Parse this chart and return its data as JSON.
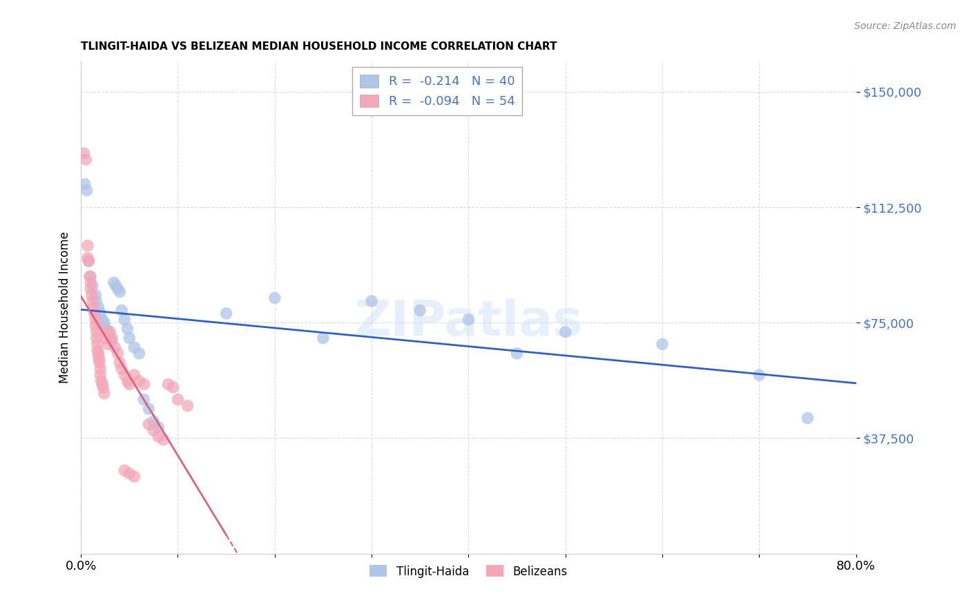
{
  "title": "TLINGIT-HAIDA VS BELIZEAN MEDIAN HOUSEHOLD INCOME CORRELATION CHART",
  "source": "Source: ZipAtlas.com",
  "ylabel": "Median Household Income",
  "ytick_labels": [
    "$37,500",
    "$75,000",
    "$112,500",
    "$150,000"
  ],
  "ytick_values": [
    37500,
    75000,
    112500,
    150000
  ],
  "ymin": 0,
  "ymax": 160000,
  "xmin": 0.0,
  "xmax": 0.8,
  "legend_line1": "R =  -0.214   N = 40",
  "legend_line2": "R =  -0.094   N = 54",
  "tlingit_color": "#aec6e8",
  "belizean_color": "#f4a7b9",
  "trendline_tlingit_color": "#3060c0",
  "trendline_belizean_color": "#e06080",
  "watermark": "ZIPatlas",
  "tlingit_points": [
    [
      0.004,
      120000
    ],
    [
      0.006,
      118000
    ],
    [
      0.008,
      95000
    ],
    [
      0.01,
      90000
    ],
    [
      0.012,
      87000
    ],
    [
      0.015,
      84000
    ],
    [
      0.016,
      82000
    ],
    [
      0.018,
      80000
    ],
    [
      0.02,
      78000
    ],
    [
      0.022,
      76000
    ],
    [
      0.024,
      75000
    ],
    [
      0.026,
      73000
    ],
    [
      0.028,
      72000
    ],
    [
      0.03,
      70000
    ],
    [
      0.032,
      69000
    ],
    [
      0.034,
      88000
    ],
    [
      0.036,
      87000
    ],
    [
      0.038,
      86000
    ],
    [
      0.04,
      85000
    ],
    [
      0.042,
      79000
    ],
    [
      0.045,
      76000
    ],
    [
      0.048,
      73000
    ],
    [
      0.05,
      70000
    ],
    [
      0.055,
      67000
    ],
    [
      0.06,
      65000
    ],
    [
      0.065,
      50000
    ],
    [
      0.07,
      47000
    ],
    [
      0.075,
      43000
    ],
    [
      0.08,
      41000
    ],
    [
      0.15,
      78000
    ],
    [
      0.2,
      83000
    ],
    [
      0.25,
      70000
    ],
    [
      0.3,
      82000
    ],
    [
      0.35,
      79000
    ],
    [
      0.4,
      76000
    ],
    [
      0.45,
      65000
    ],
    [
      0.5,
      72000
    ],
    [
      0.6,
      68000
    ],
    [
      0.7,
      58000
    ],
    [
      0.75,
      44000
    ]
  ],
  "belizean_points": [
    [
      0.003,
      130000
    ],
    [
      0.005,
      128000
    ],
    [
      0.007,
      100000
    ],
    [
      0.007,
      96000
    ],
    [
      0.008,
      95000
    ],
    [
      0.009,
      90000
    ],
    [
      0.01,
      88000
    ],
    [
      0.01,
      86000
    ],
    [
      0.011,
      84000
    ],
    [
      0.012,
      82000
    ],
    [
      0.013,
      80000
    ],
    [
      0.014,
      78000
    ],
    [
      0.015,
      76000
    ],
    [
      0.015,
      74000
    ],
    [
      0.016,
      72000
    ],
    [
      0.016,
      70000
    ],
    [
      0.017,
      68000
    ],
    [
      0.017,
      66000
    ],
    [
      0.018,
      65000
    ],
    [
      0.018,
      64000
    ],
    [
      0.019,
      63000
    ],
    [
      0.019,
      62000
    ],
    [
      0.02,
      60000
    ],
    [
      0.02,
      58000
    ],
    [
      0.021,
      56000
    ],
    [
      0.022,
      55000
    ],
    [
      0.023,
      54000
    ],
    [
      0.024,
      52000
    ],
    [
      0.025,
      72000
    ],
    [
      0.026,
      70000
    ],
    [
      0.028,
      68000
    ],
    [
      0.03,
      72000
    ],
    [
      0.032,
      70000
    ],
    [
      0.035,
      67000
    ],
    [
      0.038,
      65000
    ],
    [
      0.04,
      62000
    ],
    [
      0.042,
      60000
    ],
    [
      0.045,
      58000
    ],
    [
      0.048,
      56000
    ],
    [
      0.05,
      55000
    ],
    [
      0.055,
      58000
    ],
    [
      0.06,
      56000
    ],
    [
      0.065,
      55000
    ],
    [
      0.07,
      42000
    ],
    [
      0.075,
      40000
    ],
    [
      0.08,
      38000
    ],
    [
      0.085,
      37000
    ],
    [
      0.09,
      55000
    ],
    [
      0.095,
      54000
    ],
    [
      0.1,
      50000
    ],
    [
      0.11,
      48000
    ],
    [
      0.045,
      27000
    ],
    [
      0.05,
      26000
    ],
    [
      0.055,
      25000
    ]
  ]
}
